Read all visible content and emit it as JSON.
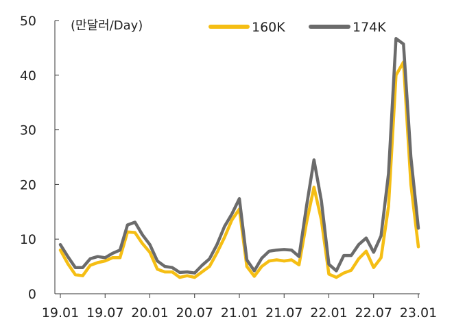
{
  "chart_data": {
    "type": "line",
    "unit_label": "(만달러/Day)",
    "ylim": [
      0,
      50
    ],
    "yticks": [
      0,
      10,
      20,
      30,
      40,
      50
    ],
    "xticks": [
      "19.01",
      "19.07",
      "20.01",
      "20.07",
      "21.01",
      "21.07",
      "22.01",
      "22.07",
      "23.01"
    ],
    "legend_position": "top",
    "series": [
      {
        "name": "160K",
        "color": "#F5BE14",
        "values": [
          8.0,
          5.5,
          3.5,
          3.3,
          5.2,
          5.7,
          6.0,
          6.6,
          6.6,
          11.3,
          11.2,
          9.2,
          7.6,
          4.5,
          4.0,
          4.0,
          3.0,
          3.3,
          3.0,
          4.0,
          5.0,
          7.5,
          10.3,
          13.5,
          15.5,
          5.0,
          3.2,
          5.0,
          6.0,
          6.2,
          6.0,
          6.2,
          5.3,
          13.0,
          19.5,
          13.5,
          3.6,
          3.0,
          3.8,
          4.3,
          6.4,
          7.8,
          4.8,
          6.6,
          16.0,
          40.0,
          42.4,
          20.0,
          8.6
        ]
      },
      {
        "name": "174K",
        "color": "#6B6B6B",
        "values": [
          9.0,
          6.8,
          4.8,
          4.8,
          6.4,
          6.8,
          6.6,
          7.4,
          8.0,
          12.6,
          13.1,
          10.8,
          9.0,
          6.0,
          5.0,
          4.8,
          3.9,
          4.0,
          3.8,
          5.2,
          6.4,
          9.0,
          12.3,
          14.6,
          17.4,
          6.2,
          4.2,
          6.5,
          7.8,
          8.0,
          8.1,
          8.0,
          6.8,
          16.0,
          24.5,
          17.0,
          5.4,
          4.2,
          7.0,
          7.0,
          9.0,
          10.2,
          7.6,
          10.6,
          22.0,
          46.7,
          45.7,
          25.0,
          12.0
        ]
      }
    ]
  }
}
